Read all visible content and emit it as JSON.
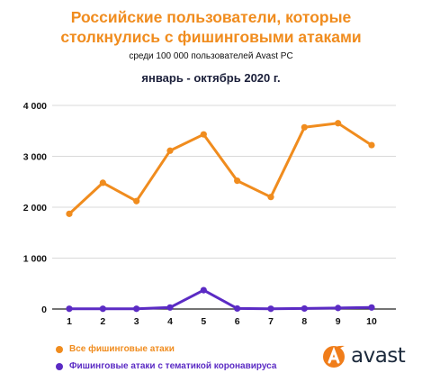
{
  "header": {
    "title_line1": "Российские пользователи, которые",
    "title_line2": "столкнулись с фишинговыми атаками",
    "subtitle": "среди 100 000 пользователей Avast PC",
    "period": "январь - октябрь 2020 г."
  },
  "brand": {
    "name": "avast",
    "logo_icon": "avast-logo-icon",
    "color": "#f07d1a"
  },
  "chart_data": {
    "type": "line",
    "x": [
      1,
      2,
      3,
      4,
      5,
      6,
      7,
      8,
      9,
      10
    ],
    "ylim": [
      0,
      4000
    ],
    "yticks": [
      0,
      1000,
      2000,
      3000,
      4000
    ],
    "ytick_labels": [
      "0",
      "1 000",
      "2 000",
      "3 000",
      "4 000"
    ],
    "grid": "horizontal",
    "legend_position": "bottom-left",
    "series": [
      {
        "name": "Все фишинговые атаки",
        "color": "#f08c1e",
        "values": [
          1870,
          2480,
          2120,
          3110,
          3430,
          2520,
          2200,
          3570,
          3650,
          3220
        ]
      },
      {
        "name": "Фишинговые атаки с тематикой коронавируса",
        "color": "#5b2bc4",
        "values": [
          5,
          5,
          5,
          30,
          370,
          10,
          5,
          10,
          20,
          30
        ]
      }
    ]
  }
}
